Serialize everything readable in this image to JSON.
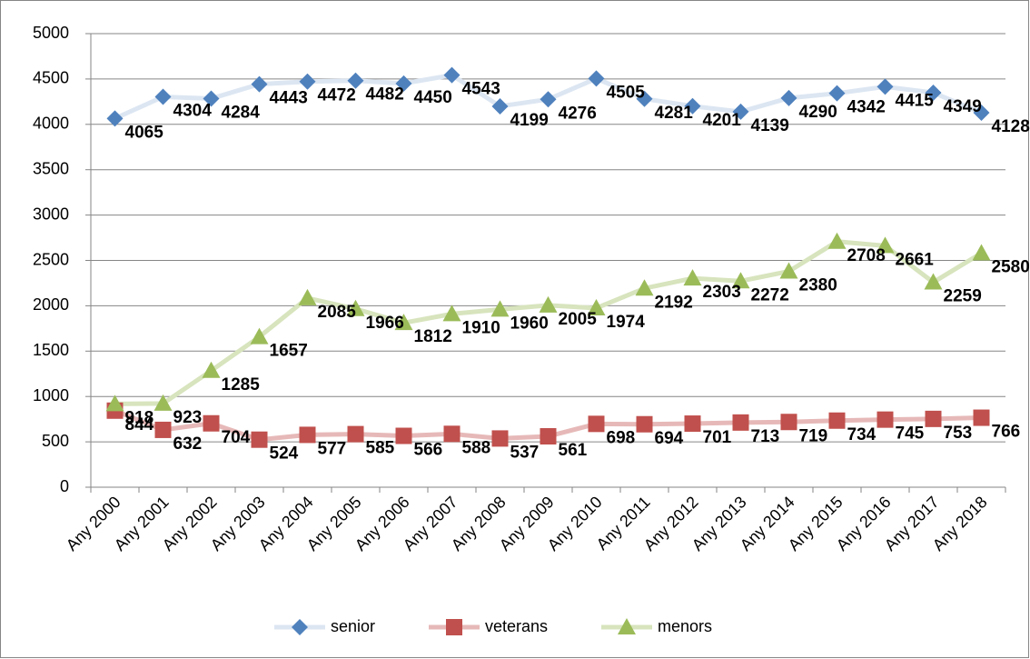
{
  "chart_data": {
    "type": "line",
    "categories": [
      "Any 2000",
      "Any 2001",
      "Any 2002",
      "Any 2003",
      "Any 2004",
      "Any 2005",
      "Any 2006",
      "Any 2007",
      "Any 2008",
      "Any 2009",
      "Any 2010",
      "Any 2011",
      "Any 2012",
      "Any 2013",
      "Any 2014",
      "Any 2015",
      "Any 2016",
      "Any 2017",
      "Any 2018"
    ],
    "series": [
      {
        "name": "senior",
        "color": "#4f81bd",
        "line_color": "#dce6f2",
        "marker": "diamond",
        "values": [
          4065,
          4304,
          4284,
          4443,
          4472,
          4482,
          4450,
          4543,
          4199,
          4276,
          4505,
          4281,
          4201,
          4139,
          4290,
          4342,
          4415,
          4349,
          4128
        ]
      },
      {
        "name": "veterans",
        "color": "#c0504d",
        "line_color": "#e6b9b8",
        "marker": "square",
        "values": [
          844,
          632,
          704,
          524,
          577,
          585,
          566,
          588,
          537,
          561,
          698,
          694,
          701,
          713,
          719,
          734,
          745,
          753,
          766
        ]
      },
      {
        "name": "menors",
        "color": "#9bbb59",
        "line_color": "#d7e4bd",
        "marker": "triangle",
        "values": [
          918,
          923,
          1285,
          1657,
          2085,
          1966,
          1812,
          1910,
          1960,
          2005,
          1974,
          2192,
          2303,
          2272,
          2380,
          2708,
          2661,
          2259,
          2580
        ]
      }
    ],
    "ylim": [
      0,
      5000
    ],
    "yticks": [
      0,
      500,
      1000,
      1500,
      2000,
      2500,
      3000,
      3500,
      4000,
      4500,
      5000
    ],
    "grid": true,
    "legend": "bottom",
    "data_labels": true
  }
}
